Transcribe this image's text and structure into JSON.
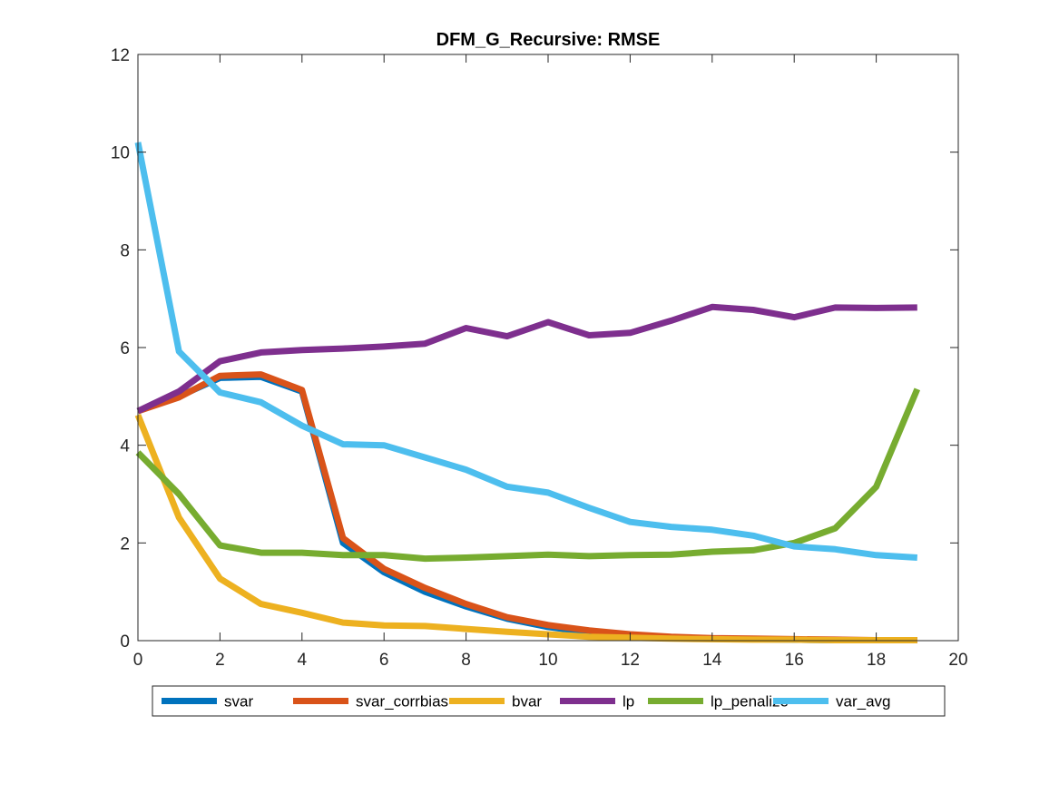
{
  "chart_data": {
    "type": "line",
    "title": "DFM_G_Recursive: RMSE",
    "xlabel": "",
    "ylabel": "",
    "xlim": [
      0,
      20
    ],
    "ylim": [
      0,
      12
    ],
    "xticks": [
      0,
      2,
      4,
      6,
      8,
      10,
      12,
      14,
      16,
      18,
      20
    ],
    "yticks": [
      0,
      2,
      4,
      6,
      8,
      10,
      12
    ],
    "grid": false,
    "legend_placement": "bottom-outside",
    "x": [
      0,
      1,
      2,
      3,
      4,
      5,
      6,
      7,
      8,
      9,
      10,
      11,
      12,
      13,
      14,
      15,
      16,
      17,
      18,
      19
    ],
    "series": [
      {
        "name": "svar",
        "color": "#0072BD",
        "values": [
          4.7,
          5.0,
          5.38,
          5.4,
          5.1,
          2.0,
          1.4,
          1.0,
          0.7,
          0.45,
          0.28,
          0.17,
          0.11,
          0.07,
          0.04,
          0.03,
          0.02,
          0.01,
          0.01,
          0.01
        ]
      },
      {
        "name": "svar_corrbias",
        "color": "#D95319",
        "values": [
          4.7,
          4.98,
          5.42,
          5.45,
          5.13,
          2.1,
          1.47,
          1.08,
          0.75,
          0.48,
          0.32,
          0.21,
          0.13,
          0.08,
          0.05,
          0.04,
          0.03,
          0.02,
          0.01,
          0.01
        ]
      },
      {
        "name": "bvar",
        "color": "#EDB120",
        "values": [
          4.62,
          2.52,
          1.27,
          0.75,
          0.57,
          0.37,
          0.31,
          0.3,
          0.24,
          0.18,
          0.13,
          0.08,
          0.06,
          0.04,
          0.03,
          0.02,
          0.02,
          0.01,
          0.01,
          0.01
        ]
      },
      {
        "name": "lp",
        "color": "#7E2F8E",
        "values": [
          4.7,
          5.1,
          5.72,
          5.9,
          5.95,
          5.98,
          6.02,
          6.08,
          6.4,
          6.23,
          6.52,
          6.25,
          6.3,
          6.55,
          6.83,
          6.77,
          6.62,
          6.82,
          6.81,
          6.82
        ]
      },
      {
        "name": "lp_penalize",
        "color": "#77AC30",
        "values": [
          3.85,
          3.0,
          1.95,
          1.8,
          1.8,
          1.75,
          1.75,
          1.68,
          1.7,
          1.73,
          1.76,
          1.73,
          1.75,
          1.76,
          1.82,
          1.85,
          2.0,
          2.3,
          3.15,
          5.15
        ]
      },
      {
        "name": "var_avg",
        "color": "#4DBEEE",
        "values": [
          10.2,
          5.92,
          5.08,
          4.88,
          4.4,
          4.02,
          4.0,
          3.75,
          3.5,
          3.15,
          3.03,
          2.72,
          2.43,
          2.33,
          2.27,
          2.15,
          1.93,
          1.87,
          1.75,
          1.7
        ]
      }
    ]
  }
}
